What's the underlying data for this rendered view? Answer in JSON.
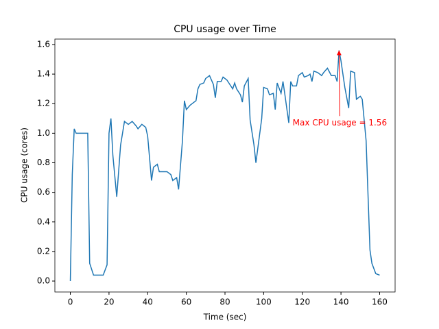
{
  "chart_data": {
    "type": "line",
    "title": "CPU usage over Time",
    "xlabel": "Time (sec)",
    "ylabel": "CPU usage (cores)",
    "x": [
      0,
      1,
      2,
      3,
      5,
      7,
      8,
      9,
      10,
      12,
      14,
      17,
      19,
      20,
      21,
      22,
      24,
      26,
      28,
      30,
      32,
      34,
      35,
      37,
      39,
      40,
      42,
      43,
      45,
      46,
      48,
      50,
      52,
      53,
      55,
      56,
      58,
      59,
      60,
      62,
      64,
      65,
      66,
      67,
      69,
      70,
      72,
      74,
      75,
      76,
      78,
      79,
      81,
      83,
      84,
      85,
      86,
      88,
      89,
      90,
      92,
      93,
      95,
      96,
      97,
      99,
      100,
      102,
      103,
      105,
      106,
      107,
      109,
      110,
      111,
      113,
      114,
      115,
      117,
      118,
      120,
      121,
      123,
      124,
      125,
      126,
      128,
      130,
      131,
      133,
      135,
      137,
      138,
      139,
      140,
      142,
      144,
      145,
      147,
      148,
      150,
      151,
      153,
      155,
      156,
      158,
      160
    ],
    "values": [
      0.0,
      0.72,
      1.03,
      1.0,
      1.0,
      1.0,
      1.0,
      1.0,
      0.12,
      0.04,
      0.04,
      0.04,
      0.11,
      1.0,
      1.1,
      0.85,
      0.57,
      0.92,
      1.08,
      1.06,
      1.08,
      1.05,
      1.03,
      1.06,
      1.04,
      0.98,
      0.68,
      0.77,
      0.79,
      0.74,
      0.74,
      0.74,
      0.72,
      0.68,
      0.7,
      0.62,
      0.95,
      1.22,
      1.16,
      1.19,
      1.21,
      1.22,
      1.3,
      1.33,
      1.34,
      1.37,
      1.39,
      1.33,
      1.24,
      1.35,
      1.35,
      1.38,
      1.36,
      1.32,
      1.3,
      1.34,
      1.3,
      1.26,
      1.21,
      1.32,
      1.37,
      1.09,
      0.92,
      0.8,
      0.9,
      1.1,
      1.31,
      1.3,
      1.26,
      1.27,
      1.16,
      1.34,
      1.27,
      1.35,
      1.26,
      1.07,
      1.35,
      1.32,
      1.32,
      1.39,
      1.41,
      1.38,
      1.39,
      1.4,
      1.35,
      1.42,
      1.41,
      1.39,
      1.41,
      1.44,
      1.39,
      1.39,
      1.35,
      1.56,
      1.49,
      1.31,
      1.17,
      1.42,
      1.41,
      1.23,
      1.25,
      1.23,
      0.95,
      0.21,
      0.12,
      0.05,
      0.04
    ],
    "color": "#1f77b4",
    "xlim": [
      -8,
      168
    ],
    "xticks": [
      0,
      20,
      40,
      60,
      80,
      100,
      120,
      140,
      160
    ],
    "ylim": [
      -0.074,
      1.637
    ],
    "yticks": [
      {
        "value": 0,
        "label": "0.0"
      },
      {
        "value": 0.2,
        "label": "0.2"
      },
      {
        "value": 0.4,
        "label": "0.4"
      },
      {
        "value": 0.6,
        "label": "0.6"
      },
      {
        "value": 0.8,
        "label": "0.8"
      },
      {
        "value": 1.0,
        "label": "1.0"
      },
      {
        "value": 1.2,
        "label": "1.2"
      },
      {
        "value": 1.4,
        "label": "1.4"
      },
      {
        "value": 1.6,
        "label": "1.6"
      }
    ],
    "annotation": {
      "text": "Max CPU usage = 1.56",
      "xy": [
        139,
        1.56
      ],
      "xytext": [
        115,
        1.07
      ],
      "color": "red"
    }
  }
}
